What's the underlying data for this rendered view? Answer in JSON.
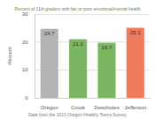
{
  "chart_data": {
    "type": "bar",
    "title": "Percent of 11th graders with fair or poor emotional/mental health",
    "categories": [
      "Oregon",
      "Crook",
      "Deschutes",
      "Jefferson"
    ],
    "values": [
      24.7,
      21.0,
      19.7,
      25.1
    ],
    "value_labels": [
      "24.7",
      "21.0",
      "19.7",
      "25.1"
    ],
    "colors": [
      "#b3b3b3",
      "#7bb661",
      "#7bb661",
      "#ee7b5c"
    ],
    "y_label": "Percent",
    "annotations": [
      "Data from the 2013 Oregon Healthy Teens Survey"
    ],
    "ylim": [
      0,
      30
    ],
    "yticks": [
      0,
      10,
      20,
      30
    ],
    "grid": true,
    "data_labels": true
  }
}
